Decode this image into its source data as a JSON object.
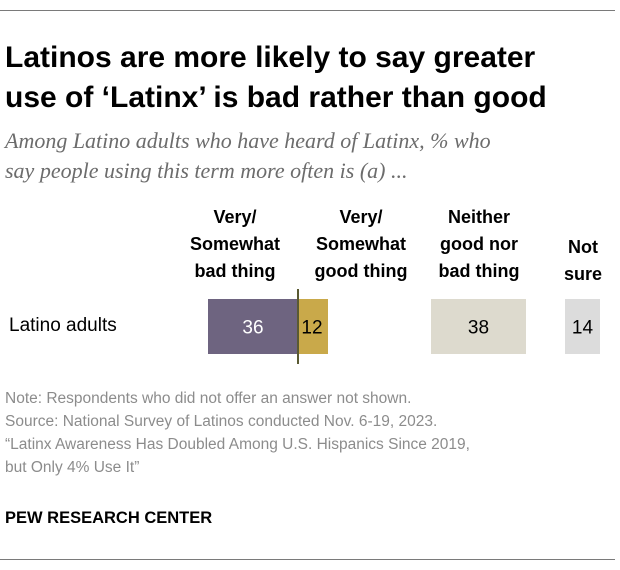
{
  "title_lines": [
    "Latinos are more likely to say greater",
    "use of ‘Latinx’ is bad rather than good"
  ],
  "subtitle_lines": [
    "Among Latino adults who have heard of Latinx, % who",
    "say people using this term more often is (a) ..."
  ],
  "chart_data": {
    "type": "bar",
    "orientation": "horizontal-diverging",
    "categories": [
      "Latino adults"
    ],
    "series": [
      {
        "name": "Very/ Somewhat bad thing",
        "header_lines": [
          "Very/",
          "Somewhat",
          "bad thing"
        ],
        "values": [
          36
        ],
        "color": "#6e6480"
      },
      {
        "name": "Very/ Somewhat good thing",
        "header_lines": [
          "Very/",
          "Somewhat",
          "good thing"
        ],
        "values": [
          12
        ],
        "color": "#c9a94a"
      },
      {
        "name": "Neither good nor bad thing",
        "header_lines": [
          "Neither",
          "good nor",
          "bad thing"
        ],
        "values": [
          38
        ],
        "color": "#dddace"
      },
      {
        "name": "Not sure",
        "header_lines": [
          "Not",
          "sure"
        ],
        "values": [
          14
        ],
        "color": "#dcdcdc"
      }
    ],
    "label_colors": [
      "#ffffff",
      "#000000",
      "#000000",
      "#000000"
    ],
    "divider_color": "#5a5a32"
  },
  "notes": [
    "Note: Respondents who did not offer an answer not shown.",
    "Source: National Survey of Latinos conducted Nov. 6-19, 2023.",
    "“Latinx Awareness Has Doubled Among U.S. Hispanics Since 2019,",
    "but Only 4% Use It”"
  ],
  "brand": "PEW RESEARCH CENTER"
}
